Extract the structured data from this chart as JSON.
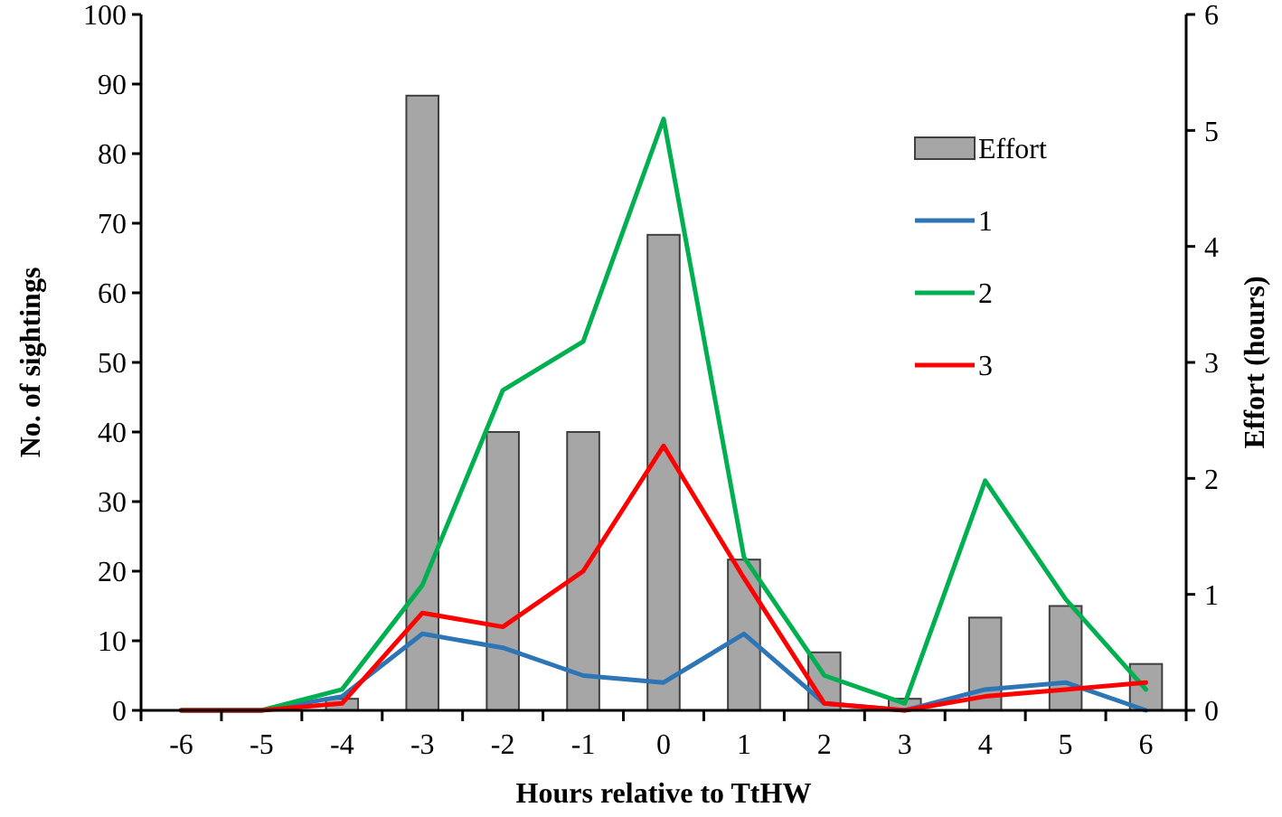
{
  "chart_data": {
    "type": "line",
    "xlabel": "Hours relative to TtHW",
    "ylabel": "No. of sightings",
    "y2label": "Effort (hours)",
    "categories": [
      "-6",
      "-5",
      "-4",
      "-3",
      "-2",
      "-1",
      "0",
      "1",
      "2",
      "3",
      "4",
      "5",
      "6"
    ],
    "series": [
      {
        "name": "Effort",
        "type": "bar",
        "axis": "y2",
        "color": "#a6a6a6",
        "values": [
          0,
          0,
          0.1,
          5.3,
          2.4,
          2.4,
          4.1,
          1.3,
          0.5,
          0.1,
          0.8,
          0.9,
          0.4
        ]
      },
      {
        "name": "1",
        "color": "#2e75b6",
        "values": [
          0,
          0,
          2,
          11,
          9,
          5,
          4,
          11,
          1,
          0,
          3,
          4,
          0
        ]
      },
      {
        "name": "2",
        "color": "#00b050",
        "values": [
          0,
          0,
          3,
          18,
          46,
          53,
          85,
          22,
          5,
          1,
          33,
          16,
          3
        ]
      },
      {
        "name": "3",
        "color": "#ff0000",
        "values": [
          0,
          0,
          1,
          14,
          12,
          20,
          38,
          19,
          1,
          0,
          2,
          3,
          4
        ]
      }
    ],
    "ylim": [
      0,
      100
    ],
    "yticks": [
      0,
      10,
      20,
      30,
      40,
      50,
      60,
      70,
      80,
      90,
      100
    ],
    "y2lim": [
      0,
      6
    ],
    "y2ticks": [
      0,
      1,
      2,
      3,
      4,
      5,
      6
    ],
    "grid": false,
    "legend": "top right",
    "marker": "none",
    "line_style": "solid"
  }
}
